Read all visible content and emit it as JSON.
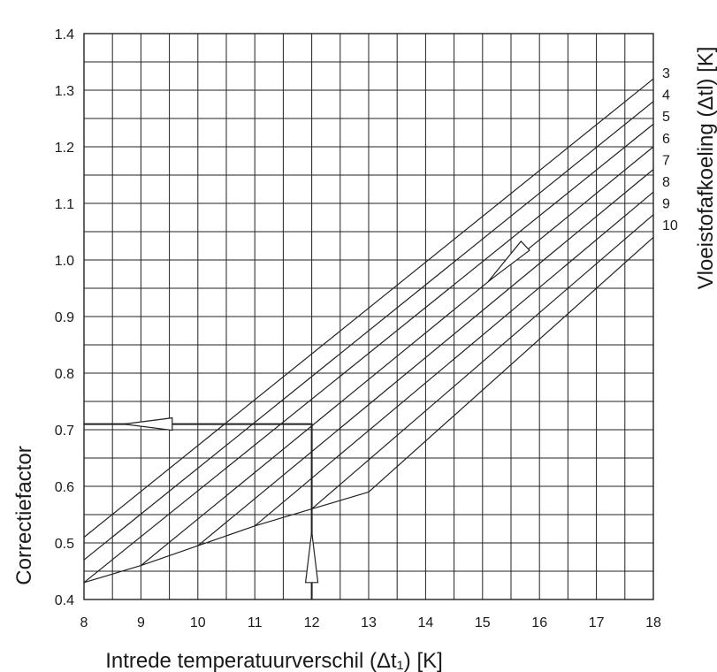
{
  "chart_data": {
    "type": "line",
    "xlabel": "Intrede temperatuurverschil (Δt₁) [K]",
    "ylabel": "Correctiefactor",
    "right_label": "Vloeistofafkoeling (Δtl) [K]",
    "xlim": [
      8,
      18
    ],
    "ylim": [
      0.4,
      1.4
    ],
    "x_ticks": [
      "8",
      "9",
      "10",
      "11",
      "12",
      "13",
      "14",
      "15",
      "16",
      "17",
      "18"
    ],
    "y_ticks": [
      "0.4",
      "0.5",
      "0.6",
      "0.7",
      "0.8",
      "0.9",
      "1.0",
      "1.1",
      "1.2",
      "1.3",
      "1.4"
    ],
    "grid": true,
    "series": [
      {
        "name": "3",
        "points": [
          [
            8,
            0.51
          ],
          [
            18,
            1.32
          ]
        ]
      },
      {
        "name": "4",
        "points": [
          [
            8,
            0.47
          ],
          [
            18,
            1.28
          ]
        ]
      },
      {
        "name": "5",
        "points": [
          [
            8,
            0.43
          ],
          [
            18,
            1.24
          ]
        ]
      },
      {
        "name": "6",
        "points": [
          [
            9,
            0.46
          ],
          [
            18,
            1.2
          ]
        ]
      },
      {
        "name": "7",
        "points": [
          [
            10,
            0.495
          ],
          [
            18,
            1.16
          ]
        ]
      },
      {
        "name": "8",
        "points": [
          [
            11,
            0.53
          ],
          [
            18,
            1.12
          ]
        ]
      },
      {
        "name": "9",
        "points": [
          [
            12,
            0.56
          ],
          [
            18,
            1.08
          ]
        ]
      },
      {
        "name": "10",
        "points": [
          [
            13,
            0.59
          ],
          [
            18,
            1.04
          ]
        ]
      }
    ],
    "boundary": [
      [
        8,
        0.43
      ],
      [
        9,
        0.46
      ],
      [
        10,
        0.495
      ],
      [
        11,
        0.53
      ],
      [
        12,
        0.56
      ],
      [
        13,
        0.59
      ]
    ],
    "example": {
      "x": 12,
      "y": 0.71
    }
  }
}
